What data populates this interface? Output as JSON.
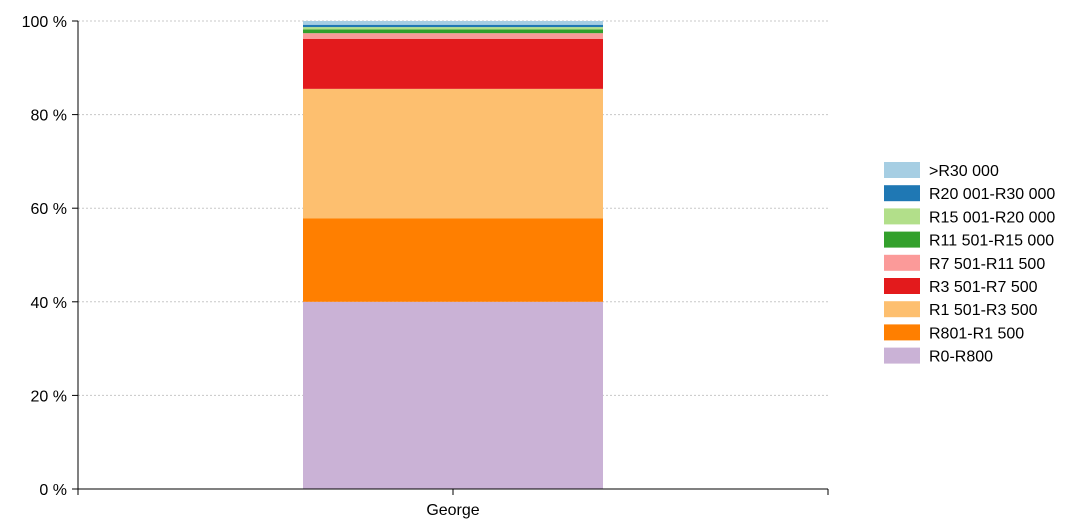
{
  "chart_data": {
    "type": "bar",
    "stacked": true,
    "percent": true,
    "categories": [
      "George"
    ],
    "y_tick_labels": [
      "0 %",
      "20 %",
      "40 %",
      "60 %",
      "80 %",
      "100 %"
    ],
    "ylim": [
      0,
      100
    ],
    "grid": true,
    "legend_position": "right",
    "series": [
      {
        "name": "R0-R800",
        "color": "#cab2d6",
        "values": [
          40.0
        ]
      },
      {
        "name": "R801-R1 500",
        "color": "#ff7f00",
        "values": [
          17.8
        ]
      },
      {
        "name": "R1 501-R3 500",
        "color": "#fdbf6f",
        "values": [
          27.7
        ]
      },
      {
        "name": "R3 501-R7 500",
        "color": "#e31a1c",
        "values": [
          10.7
        ]
      },
      {
        "name": "R7 501-R11 500",
        "color": "#fb9a99",
        "values": [
          1.2
        ]
      },
      {
        "name": "R11 501-R15 000",
        "color": "#33a02c",
        "values": [
          0.8
        ]
      },
      {
        "name": "R15 001-R20 000",
        "color": "#b2df8a",
        "values": [
          0.5
        ]
      },
      {
        "name": "R20 001-R30 000",
        "color": "#1f78b4",
        "values": [
          0.5
        ]
      },
      {
        "name": ">R30 000",
        "color": "#a6cee3",
        "values": [
          0.8
        ]
      }
    ]
  }
}
